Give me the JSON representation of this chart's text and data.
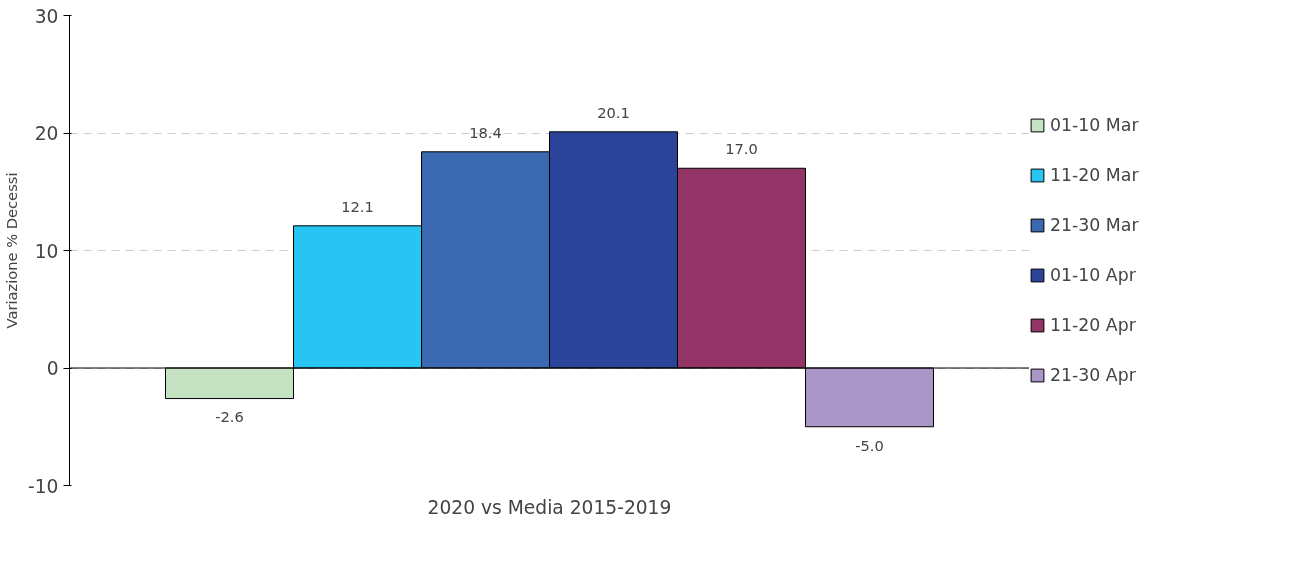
{
  "chart_data": {
    "type": "bar",
    "ylabel": "Variazione % Decessi",
    "categories": [
      "2020 vs Media 2015-2019"
    ],
    "series": [
      {
        "name": "01-10 Mar",
        "color": "#c5e3c3",
        "values": [
          -2.6
        ],
        "value_labels": [
          "-2.6"
        ]
      },
      {
        "name": "11-20 Mar",
        "color": "#29c5f2",
        "values": [
          12.1
        ],
        "value_labels": [
          "12.1"
        ]
      },
      {
        "name": "21-30 Mar",
        "color": "#3a69b2",
        "values": [
          18.4
        ],
        "value_labels": [
          "18.4"
        ]
      },
      {
        "name": "01-10 Apr",
        "color": "#2b4499",
        "values": [
          20.1
        ],
        "value_labels": [
          "20.1"
        ]
      },
      {
        "name": "11-20 Apr",
        "color": "#923566",
        "values": [
          17.0
        ],
        "value_labels": [
          "17.0"
        ]
      },
      {
        "name": "21-30 Apr",
        "color": "#a995c6",
        "values": [
          -5.0
        ],
        "value_labels": [
          "-5.0"
        ]
      }
    ],
    "ylim": [
      -10,
      30
    ],
    "yticks": [
      -10,
      0,
      10,
      20,
      30
    ],
    "grid": "y",
    "legend": "right"
  }
}
